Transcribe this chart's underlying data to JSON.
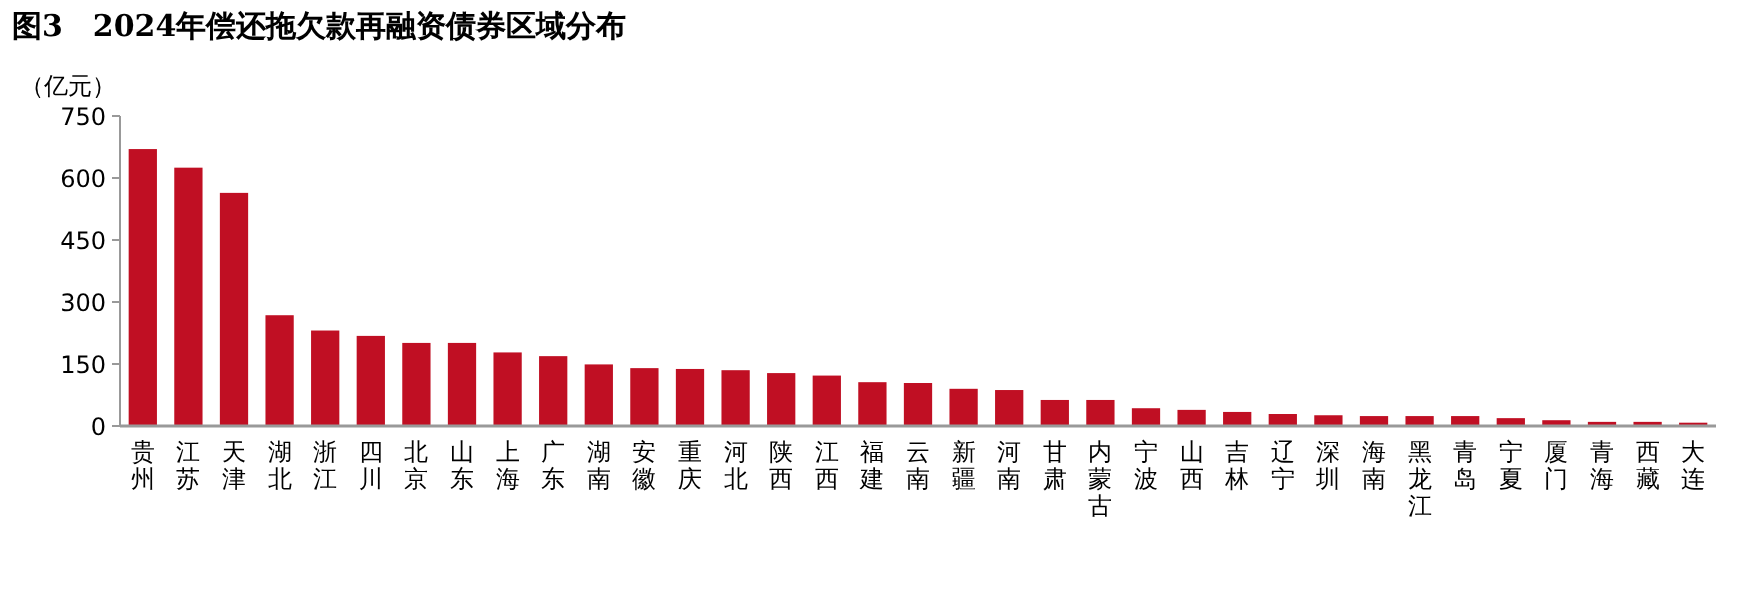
{
  "chart_data": {
    "type": "bar",
    "title": "图3　2024年偿还拖欠款再融资债券区域分布",
    "ylabel": "（亿元）",
    "categories": [
      "贵州",
      "江苏",
      "天津",
      "湖北",
      "浙江",
      "四川",
      "北京",
      "山东",
      "上海",
      "广东",
      "湖南",
      "安徽",
      "重庆",
      "河北",
      "陕西",
      "江西",
      "福建",
      "云南",
      "新疆",
      "河南",
      "甘肃",
      "内蒙古",
      "宁波",
      "山西",
      "吉林",
      "辽宁",
      "深圳",
      "海南",
      "黑龙江",
      "青岛",
      "宁夏",
      "厦门",
      "青海",
      "西藏",
      "大连"
    ],
    "values": [
      670,
      625,
      564,
      268,
      231,
      218,
      201,
      201,
      178,
      169,
      149,
      140,
      138,
      135,
      128,
      122,
      106,
      104,
      90,
      87,
      63,
      63,
      43,
      39,
      34,
      29,
      26,
      24,
      24,
      24,
      19,
      14,
      10,
      10,
      8
    ],
    "color": "#c00f23",
    "ylim": [
      0,
      750
    ],
    "yticks": [
      0,
      150,
      300,
      450,
      600,
      750
    ],
    "grid": false
  }
}
